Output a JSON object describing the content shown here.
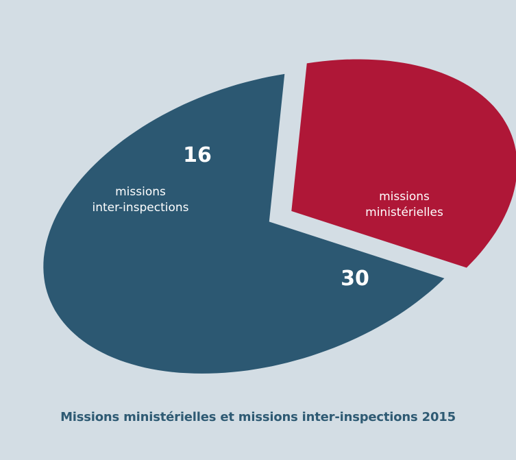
{
  "chart_data": {
    "type": "pie",
    "title": "Missions ministérielles et missions inter-inspections 2015",
    "slices": [
      {
        "name": "missions inter-inspections",
        "label_lines": [
          "missions",
          "inter-inspections"
        ],
        "value": 16,
        "color": "#af1737"
      },
      {
        "name": "missions ministérielles",
        "label_lines": [
          "missions",
          "ministérielles"
        ],
        "value": 30,
        "color": "#2c5872"
      }
    ]
  }
}
